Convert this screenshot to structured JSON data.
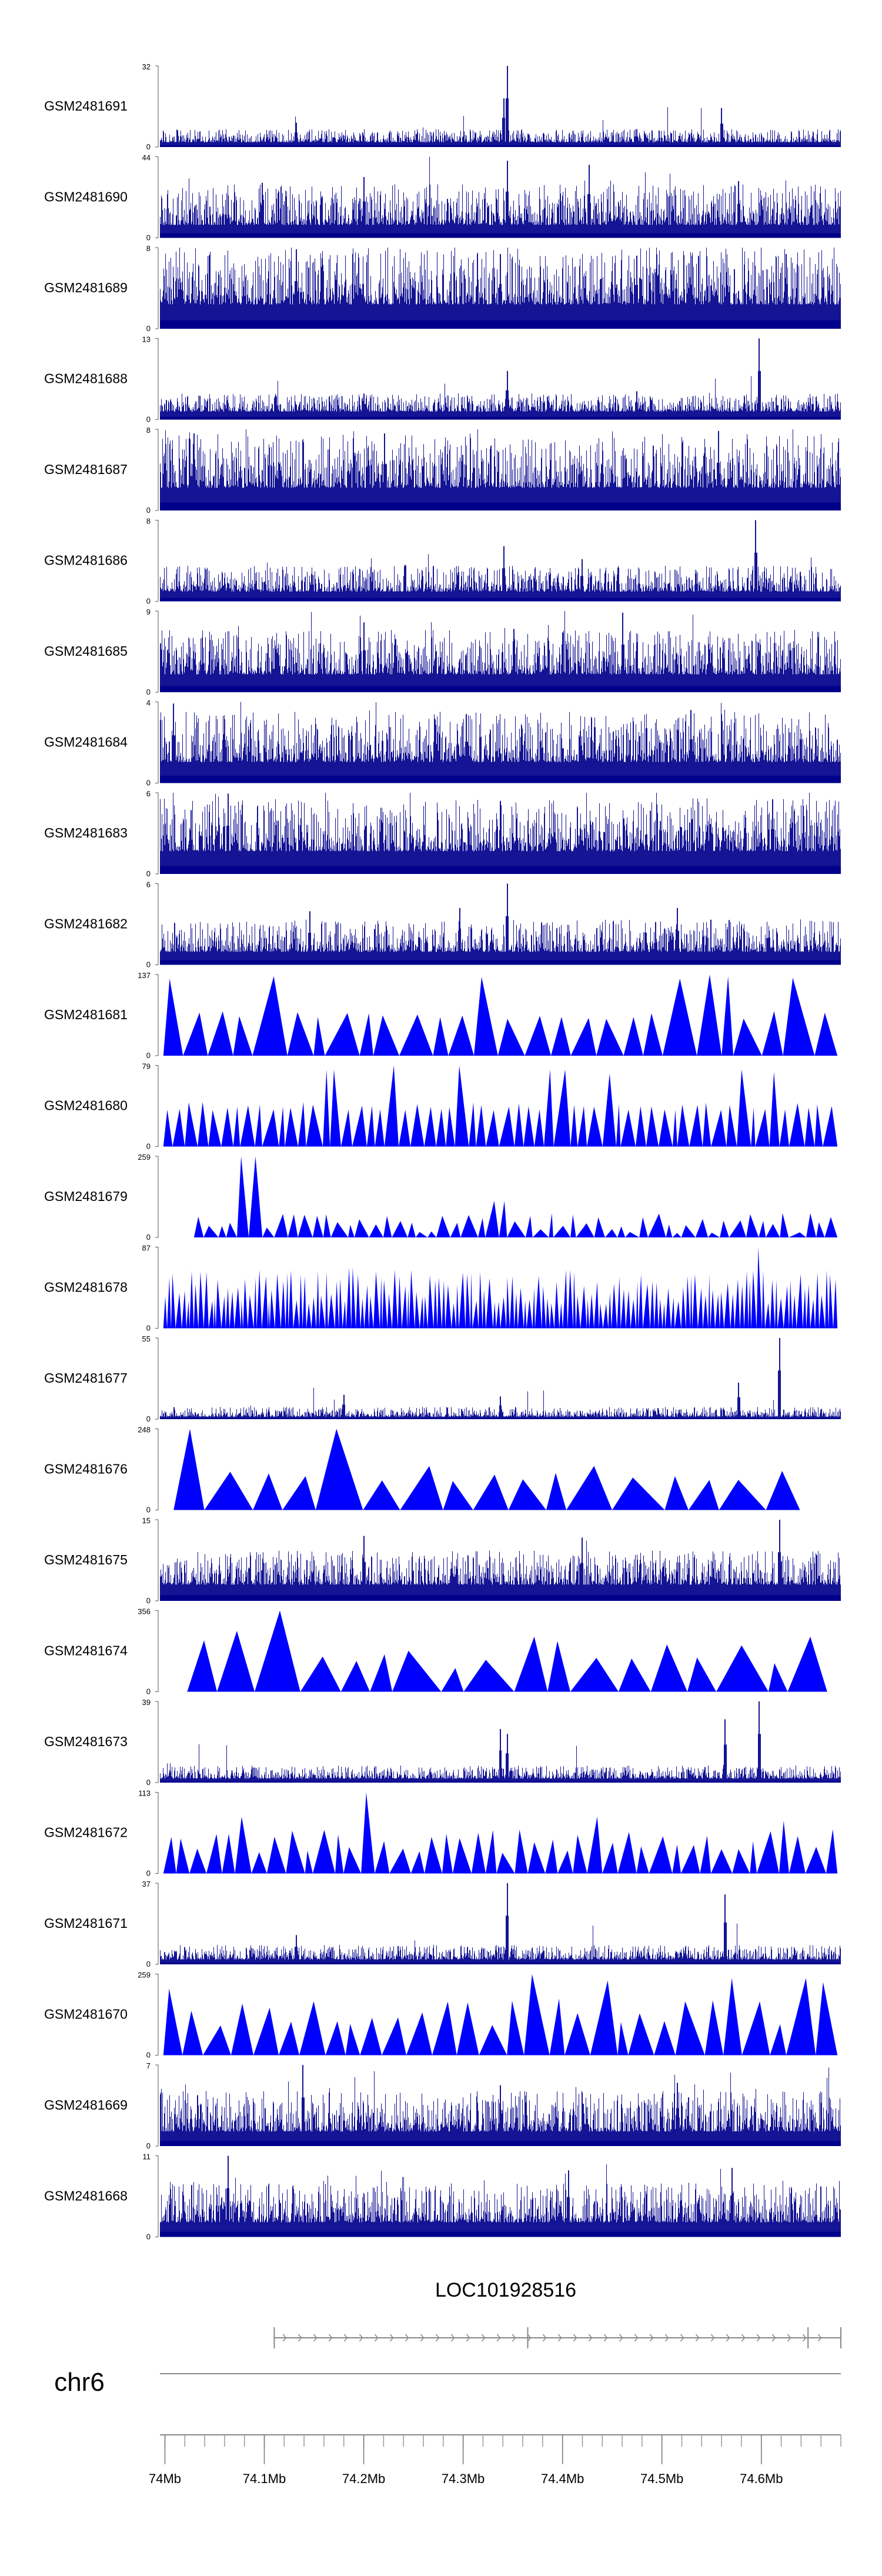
{
  "chart_data": {
    "type": "area",
    "title": "",
    "xlabel": "",
    "ylabel": "",
    "chromosome": "chr6",
    "xlim": [
      73.995,
      74.68
    ],
    "x_unit": "Mb",
    "x_ticks": [
      "74Mb",
      "74.1Mb",
      "74.2Mb",
      "74.3Mb",
      "74.4Mb",
      "74.5Mb",
      "74.6Mb"
    ],
    "x_tick_values": [
      74.0,
      74.1,
      74.2,
      74.3,
      74.4,
      74.5,
      74.6
    ],
    "gene": {
      "name": "LOC101928516",
      "start": 74.11,
      "end": 74.68,
      "strand": "+",
      "exons": [
        74.11,
        74.365,
        74.647,
        74.68
      ]
    },
    "tracks": [
      {
        "name": "GSM2481691",
        "ymin": "0",
        "ymax": "32",
        "style": "spiky",
        "base": 0.06,
        "noise": 0.16,
        "peaks": [
          [
            0.51,
            1.0
          ],
          [
            0.505,
            0.6
          ],
          [
            0.825,
            0.48
          ],
          [
            0.2,
            0.3
          ],
          [
            0.7,
            0.22
          ]
        ]
      },
      {
        "name": "GSM2481690",
        "ymin": "0",
        "ymax": "44",
        "style": "dense",
        "base": 0.16,
        "noise": 0.5,
        "peaks": [
          [
            0.51,
            0.95
          ],
          [
            0.63,
            0.9
          ],
          [
            0.3,
            0.75
          ],
          [
            0.15,
            0.68
          ],
          [
            0.85,
            0.7
          ]
        ]
      },
      {
        "name": "GSM2481689",
        "ymin": "0",
        "ymax": "8",
        "style": "dense",
        "base": 0.3,
        "noise": 0.7,
        "peaks": [
          [
            0.2,
            0.98
          ],
          [
            0.5,
            0.92
          ],
          [
            0.7,
            0.9
          ],
          [
            0.92,
            0.92
          ]
        ]
      },
      {
        "name": "GSM2481688",
        "ymin": "0",
        "ymax": "13",
        "style": "spiky",
        "base": 0.1,
        "noise": 0.22,
        "peaks": [
          [
            0.88,
            1.0
          ],
          [
            0.51,
            0.6
          ],
          [
            0.3,
            0.32
          ],
          [
            0.7,
            0.35
          ]
        ]
      },
      {
        "name": "GSM2481687",
        "ymin": "0",
        "ymax": "8",
        "style": "dense",
        "base": 0.28,
        "noise": 0.66,
        "peaks": [
          [
            0.05,
            0.95
          ],
          [
            0.33,
            0.95
          ],
          [
            0.82,
            0.98
          ]
        ]
      },
      {
        "name": "GSM2481686",
        "ymin": "0",
        "ymax": "8",
        "style": "spiky",
        "base": 0.12,
        "noise": 0.32,
        "peaks": [
          [
            0.875,
            1.0
          ],
          [
            0.505,
            0.68
          ],
          [
            0.62,
            0.52
          ],
          [
            0.36,
            0.45
          ]
        ]
      },
      {
        "name": "GSM2481685",
        "ymin": "0",
        "ymax": "9",
        "style": "dense",
        "base": 0.22,
        "noise": 0.55,
        "peaks": [
          [
            0.68,
            0.98
          ],
          [
            0.3,
            0.86
          ],
          [
            0.52,
            0.78
          ]
        ]
      },
      {
        "name": "GSM2481684",
        "ymin": "0",
        "ymax": "4",
        "style": "dense",
        "base": 0.26,
        "noise": 0.62,
        "peaks": [
          [
            0.02,
            0.98
          ],
          [
            0.45,
            0.85
          ],
          [
            0.78,
            0.9
          ]
        ]
      },
      {
        "name": "GSM2481683",
        "ymin": "0",
        "ymax": "6",
        "style": "dense",
        "base": 0.28,
        "noise": 0.65,
        "peaks": [
          [
            0.1,
            0.99
          ],
          [
            0.5,
            0.9
          ],
          [
            0.9,
            0.92
          ]
        ]
      },
      {
        "name": "GSM2481682",
        "ymin": "0",
        "ymax": "6",
        "style": "spiky",
        "base": 0.16,
        "noise": 0.4,
        "peaks": [
          [
            0.51,
            1.0
          ],
          [
            0.22,
            0.66
          ],
          [
            0.44,
            0.7
          ],
          [
            0.76,
            0.7
          ]
        ]
      },
      {
        "name": "GSM2481681",
        "ymin": "0",
        "ymax": "137",
        "style": "tri",
        "seed": 11,
        "count": 28,
        "tall": [
          [
            0.78,
            0.95
          ],
          [
            0.8,
            1.0
          ],
          [
            0.84,
            0.98
          ],
          [
            0.93,
            0.96
          ],
          [
            0.47,
            0.97
          ],
          [
            0.03,
            0.95
          ],
          [
            0.15,
            0.98
          ]
        ]
      },
      {
        "name": "GSM2481680",
        "ymin": "0",
        "ymax": "79",
        "style": "tri",
        "seed": 23,
        "count": 60,
        "tall": [
          [
            0.25,
            0.95
          ],
          [
            0.34,
            1.0
          ],
          [
            0.45,
            1.0
          ],
          [
            0.58,
            0.95
          ],
          [
            0.66,
            0.9
          ],
          [
            0.85,
            0.95
          ],
          [
            0.9,
            0.92
          ]
        ]
      },
      {
        "name": "GSM2481679",
        "ymin": "0",
        "ymax": "259",
        "style": "tri",
        "seed": 37,
        "count": 55,
        "lo": 0.05,
        "hi": 0.3,
        "start": 0.05,
        "tall": [
          [
            0.13,
            1.0
          ],
          [
            0.5,
            0.45
          ],
          [
            0.92,
            0.3
          ]
        ]
      },
      {
        "name": "GSM2481678",
        "ymin": "0",
        "ymax": "87",
        "style": "tri",
        "seed": 53,
        "count": 150,
        "lo": 0.3,
        "hi": 0.72,
        "tall": [
          [
            0.88,
            1.0
          ],
          [
            0.28,
            0.75
          ],
          [
            0.6,
            0.72
          ],
          [
            0.32,
            0.7
          ]
        ]
      },
      {
        "name": "GSM2481677",
        "ymin": "0",
        "ymax": "55",
        "style": "spiky",
        "base": 0.03,
        "noise": 0.12,
        "peaks": [
          [
            0.91,
            1.0
          ],
          [
            0.85,
            0.45
          ],
          [
            0.27,
            0.3
          ],
          [
            0.5,
            0.28
          ]
        ]
      },
      {
        "name": "GSM2481676",
        "ymin": "0",
        "ymax": "248",
        "style": "tri",
        "seed": 71,
        "count": 17,
        "lo": 0.35,
        "hi": 0.55,
        "start": 0.02,
        "end": 0.94,
        "tall": [
          [
            0.03,
            1.0
          ],
          [
            0.27,
            1.0
          ],
          [
            0.29,
            0.88
          ]
        ]
      },
      {
        "name": "GSM2481675",
        "ymin": "0",
        "ymax": "15",
        "style": "spiky",
        "base": 0.2,
        "noise": 0.42,
        "peaks": [
          [
            0.91,
            1.0
          ],
          [
            0.3,
            0.8
          ],
          [
            0.62,
            0.78
          ]
        ]
      },
      {
        "name": "GSM2481674",
        "ymin": "0",
        "ymax": "356",
        "style": "tri",
        "seed": 89,
        "count": 18,
        "lo": 0.25,
        "hi": 0.65,
        "start": 0.04,
        "end": 0.98,
        "tall": [
          [
            0.2,
            1.0
          ],
          [
            0.1,
            0.75
          ],
          [
            0.54,
            0.68
          ],
          [
            0.93,
            0.68
          ]
        ]
      },
      {
        "name": "GSM2481673",
        "ymin": "0",
        "ymax": "39",
        "style": "spiky",
        "base": 0.05,
        "noise": 0.16,
        "peaks": [
          [
            0.88,
            1.0
          ],
          [
            0.83,
            0.78
          ],
          [
            0.5,
            0.66
          ],
          [
            0.51,
            0.6
          ]
        ]
      },
      {
        "name": "GSM2481672",
        "ymin": "0",
        "ymax": "113",
        "style": "tri",
        "seed": 97,
        "count": 44,
        "lo": 0.25,
        "hi": 0.55,
        "tall": [
          [
            0.3,
            1.0
          ],
          [
            0.12,
            0.7
          ],
          [
            0.63,
            0.7
          ],
          [
            0.92,
            0.65
          ]
        ]
      },
      {
        "name": "GSM2481671",
        "ymin": "0",
        "ymax": "37",
        "style": "spiky",
        "base": 0.06,
        "noise": 0.18,
        "peaks": [
          [
            0.51,
            1.0
          ],
          [
            0.83,
            0.86
          ],
          [
            0.2,
            0.36
          ]
        ]
      },
      {
        "name": "GSM2481670",
        "ymin": "0",
        "ymax": "259",
        "style": "tri",
        "seed": 131,
        "count": 30,
        "lo": 0.35,
        "hi": 0.7,
        "tall": [
          [
            0.57,
            1.0
          ],
          [
            0.84,
            0.95
          ],
          [
            0.93,
            0.95
          ],
          [
            0.67,
            0.92
          ],
          [
            0.98,
            0.9
          ],
          [
            0.02,
            0.82
          ]
        ]
      },
      {
        "name": "GSM2481669",
        "ymin": "0",
        "ymax": "7",
        "style": "dense",
        "base": 0.18,
        "noise": 0.5,
        "peaks": [
          [
            0.21,
            1.0
          ],
          [
            0.5,
            0.75
          ],
          [
            0.76,
            0.78
          ]
        ]
      },
      {
        "name": "GSM2481668",
        "ymin": "0",
        "ymax": "11",
        "style": "dense",
        "base": 0.18,
        "noise": 0.48,
        "peaks": [
          [
            0.1,
            1.0
          ],
          [
            0.6,
            0.82
          ],
          [
            0.84,
            0.85
          ]
        ]
      }
    ]
  }
}
